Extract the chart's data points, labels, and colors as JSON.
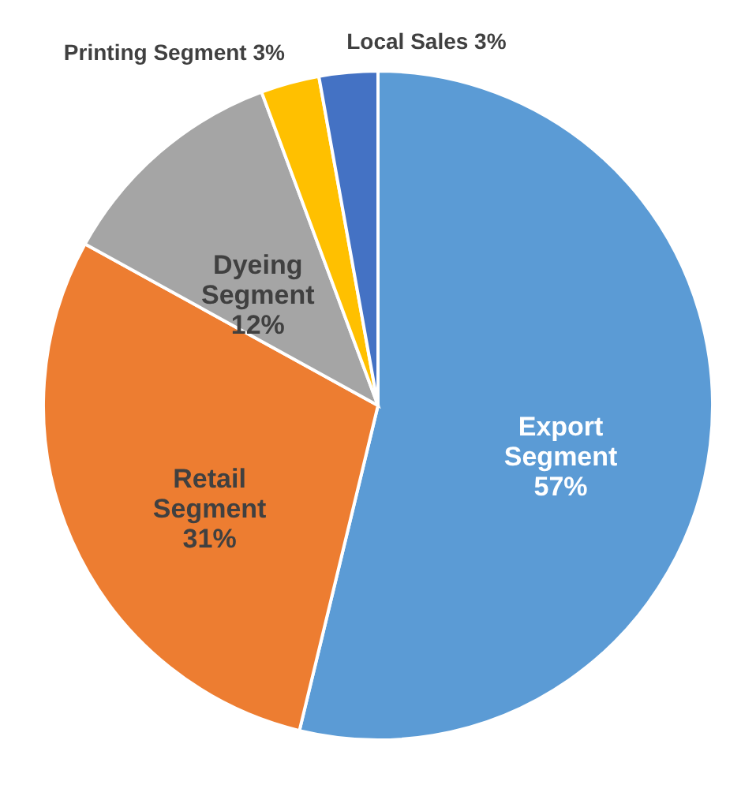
{
  "chart_data": {
    "type": "pie",
    "categories": [
      "Export Segment",
      "Retail Segment",
      "Dyeing Segment",
      "Printing Segment",
      "Local Sales"
    ],
    "values": [
      57,
      31,
      12,
      3,
      3
    ],
    "colors": [
      "#5b9bd5",
      "#ed7d31",
      "#a5a5a5",
      "#ffc000",
      "#4472c4"
    ],
    "value_labels": [
      "57%",
      "31%",
      "12%",
      "3%",
      "3%"
    ]
  }
}
